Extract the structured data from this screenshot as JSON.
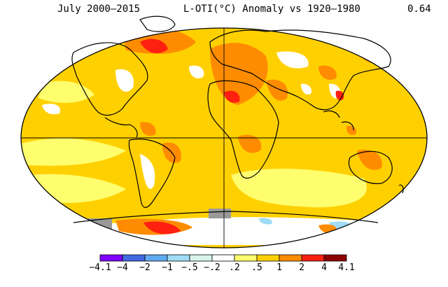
{
  "header": {
    "left": "July 2000–2015",
    "center": "L-OTI(°C) Anomaly vs 1920–1980",
    "right": "0.64"
  },
  "legend": {
    "labels": [
      "−4.1",
      "−4",
      "−2",
      "−1",
      "−.5",
      "−.2",
      ".2",
      ".5",
      "1",
      "2",
      "4",
      "4.1"
    ],
    "colors": [
      "#7f00ff",
      "#4169e1",
      "#60aaf0",
      "#a0dcf5",
      "#d6f5e8",
      "#ffffff",
      "#ffff6e",
      "#ffd000",
      "#ff8c00",
      "#ff2010",
      "#8b0000"
    ]
  },
  "map": {
    "projection": "equal-area ellipse",
    "dominant_color": "#ffd000",
    "nodata_color": "#9a9a9a"
  }
}
